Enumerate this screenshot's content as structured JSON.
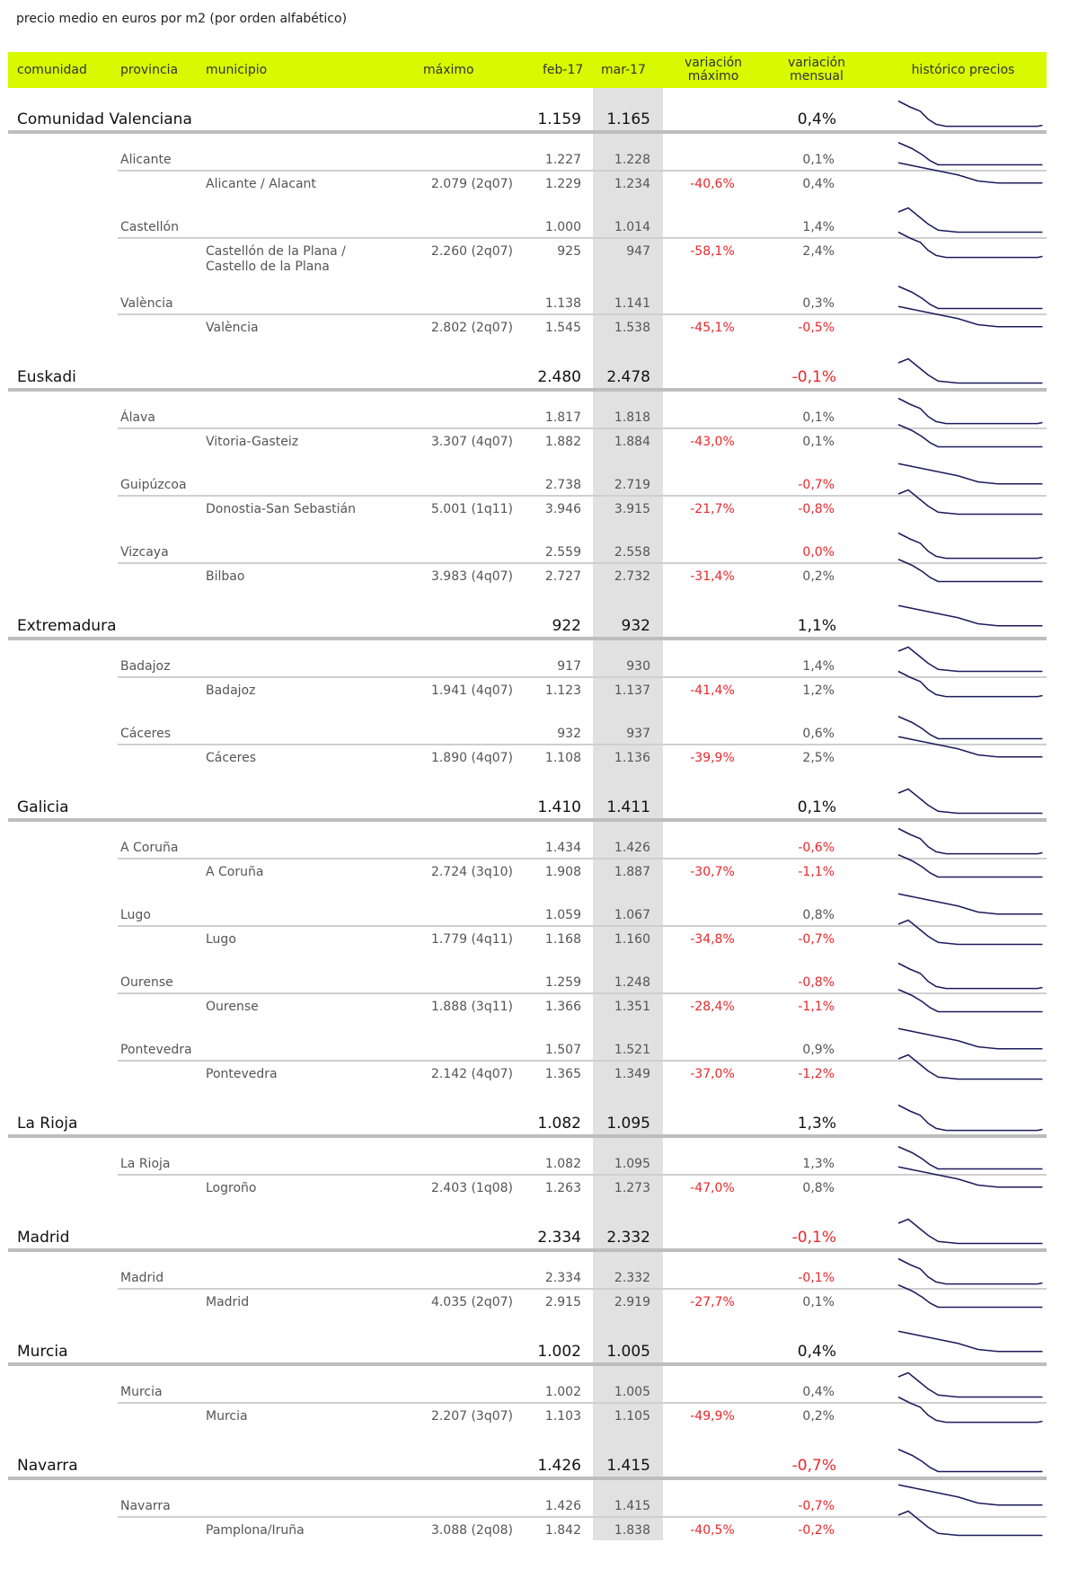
{
  "title": "precio medio en euros por m2 (por orden alfabético)",
  "header": {
    "comunidad": "comunidad",
    "provincia": "provincia",
    "municipio": "municipio",
    "maximo": "máximo",
    "feb": "feb-17",
    "mar": "mar-17",
    "var_max_1": "variación",
    "var_max_2": "máximo",
    "var_men_1": "variación",
    "var_men_2": "mensual",
    "historico": "histórico precios"
  },
  "colors": {
    "header_bg": "#d7fa00",
    "negative": "#e8282b",
    "highlight_column": "#e1e1e1",
    "sparkline": "#1c1c5c"
  },
  "rows": [
    {
      "level": "comunidad",
      "name": "Comunidad Valenciana",
      "maximo": "",
      "feb": "1.159",
      "mar": "1.165",
      "var_max": "",
      "var_men": "0,4%",
      "var_men_red": false
    },
    {
      "level": "provincia",
      "name": "Alicante",
      "maximo": "",
      "feb": "1.227",
      "mar": "1.228",
      "var_max": "",
      "var_men": "0,1%",
      "var_men_red": false
    },
    {
      "level": "municipio",
      "name": "Alicante / Alacant",
      "maximo": "2.079 (2q07)",
      "feb": "1.229",
      "mar": "1.234",
      "var_max": "-40,6%",
      "var_men": "0,4%",
      "var_men_red": false
    },
    {
      "level": "provincia",
      "name": "Castellón",
      "maximo": "",
      "feb": "1.000",
      "mar": "1.014",
      "var_max": "",
      "var_men": "1,4%",
      "var_men_red": false
    },
    {
      "level": "municipio",
      "name": "Castellón de la Plana /",
      "name2": "Castello de la Plana",
      "maximo": "2.260 (2q07)",
      "feb": "925",
      "mar": "947",
      "var_max": "-58,1%",
      "var_men": "2,4%",
      "var_men_red": false
    },
    {
      "level": "provincia",
      "name": "València",
      "maximo": "",
      "feb": "1.138",
      "mar": "1.141",
      "var_max": "",
      "var_men": "0,3%",
      "var_men_red": false
    },
    {
      "level": "municipio",
      "name": "València",
      "maximo": "2.802 (2q07)",
      "feb": "1.545",
      "mar": "1.538",
      "var_max": "-45,1%",
      "var_men": "-0,5%",
      "var_men_red": true
    },
    {
      "level": "comunidad",
      "name": "Euskadi",
      "maximo": "",
      "feb": "2.480",
      "mar": "2.478",
      "var_max": "",
      "var_men": "-0,1%",
      "var_men_red": true
    },
    {
      "level": "provincia",
      "name": "Álava",
      "maximo": "",
      "feb": "1.817",
      "mar": "1.818",
      "var_max": "",
      "var_men": "0,1%",
      "var_men_red": false
    },
    {
      "level": "municipio",
      "name": "Vitoria-Gasteiz",
      "maximo": "3.307 (4q07)",
      "feb": "1.882",
      "mar": "1.884",
      "var_max": "-43,0%",
      "var_men": "0,1%",
      "var_men_red": false
    },
    {
      "level": "provincia",
      "name": "Guipúzcoa",
      "maximo": "",
      "feb": "2.738",
      "mar": "2.719",
      "var_max": "",
      "var_men": "-0,7%",
      "var_men_red": true
    },
    {
      "level": "municipio",
      "name": "Donostia-San Sebastián",
      "maximo": "5.001 (1q11)",
      "feb": "3.946",
      "mar": "3.915",
      "var_max": "-21,7%",
      "var_men": "-0,8%",
      "var_men_red": true
    },
    {
      "level": "provincia",
      "name": "Vizcaya",
      "maximo": "",
      "feb": "2.559",
      "mar": "2.558",
      "var_max": "",
      "var_men": "0,0%",
      "var_men_red": true
    },
    {
      "level": "municipio",
      "name": "Bilbao",
      "maximo": "3.983 (4q07)",
      "feb": "2.727",
      "mar": "2.732",
      "var_max": "-31,4%",
      "var_men": "0,2%",
      "var_men_red": false
    },
    {
      "level": "comunidad",
      "name": "Extremadura",
      "maximo": "",
      "feb": "922",
      "mar": "932",
      "var_max": "",
      "var_men": "1,1%",
      "var_men_red": false
    },
    {
      "level": "provincia",
      "name": "Badajoz",
      "maximo": "",
      "feb": "917",
      "mar": "930",
      "var_max": "",
      "var_men": "1,4%",
      "var_men_red": false
    },
    {
      "level": "municipio",
      "name": "Badajoz",
      "maximo": "1.941 (4q07)",
      "feb": "1.123",
      "mar": "1.137",
      "var_max": "-41,4%",
      "var_men": "1,2%",
      "var_men_red": false
    },
    {
      "level": "provincia",
      "name": "Cáceres",
      "maximo": "",
      "feb": "932",
      "mar": "937",
      "var_max": "",
      "var_men": "0,6%",
      "var_men_red": false
    },
    {
      "level": "municipio",
      "name": "Cáceres",
      "maximo": "1.890 (4q07)",
      "feb": "1.108",
      "mar": "1.136",
      "var_max": "-39,9%",
      "var_men": "2,5%",
      "var_men_red": false
    },
    {
      "level": "comunidad",
      "name": "Galicia",
      "maximo": "",
      "feb": "1.410",
      "mar": "1.411",
      "var_max": "",
      "var_men": "0,1%",
      "var_men_red": false
    },
    {
      "level": "provincia",
      "name": "A Coruña",
      "maximo": "",
      "feb": "1.434",
      "mar": "1.426",
      "var_max": "",
      "var_men": "-0,6%",
      "var_men_red": true
    },
    {
      "level": "municipio",
      "name": "A Coruña",
      "maximo": "2.724 (3q10)",
      "feb": "1.908",
      "mar": "1.887",
      "var_max": "-30,7%",
      "var_men": "-1,1%",
      "var_men_red": true
    },
    {
      "level": "provincia",
      "name": "Lugo",
      "maximo": "",
      "feb": "1.059",
      "mar": "1.067",
      "var_max": "",
      "var_men": "0,8%",
      "var_men_red": false
    },
    {
      "level": "municipio",
      "name": "Lugo",
      "maximo": "1.779 (4q11)",
      "feb": "1.168",
      "mar": "1.160",
      "var_max": "-34,8%",
      "var_men": "-0,7%",
      "var_men_red": true
    },
    {
      "level": "provincia",
      "name": "Ourense",
      "maximo": "",
      "feb": "1.259",
      "mar": "1.248",
      "var_max": "",
      "var_men": "-0,8%",
      "var_men_red": true
    },
    {
      "level": "municipio",
      "name": "Ourense",
      "maximo": "1.888 (3q11)",
      "feb": "1.366",
      "mar": "1.351",
      "var_max": "-28,4%",
      "var_men": "-1,1%",
      "var_men_red": true
    },
    {
      "level": "provincia",
      "name": "Pontevedra",
      "maximo": "",
      "feb": "1.507",
      "mar": "1.521",
      "var_max": "",
      "var_men": "0,9%",
      "var_men_red": false
    },
    {
      "level": "municipio",
      "name": "Pontevedra",
      "maximo": "2.142 (4q07)",
      "feb": "1.365",
      "mar": "1.349",
      "var_max": "-37,0%",
      "var_men": "-1,2%",
      "var_men_red": true
    },
    {
      "level": "comunidad",
      "name": "La Rioja",
      "maximo": "",
      "feb": "1.082",
      "mar": "1.095",
      "var_max": "",
      "var_men": "1,3%",
      "var_men_red": false
    },
    {
      "level": "provincia",
      "name": "La Rioja",
      "maximo": "",
      "feb": "1.082",
      "mar": "1.095",
      "var_max": "",
      "var_men": "1,3%",
      "var_men_red": false
    },
    {
      "level": "municipio",
      "name": "Logroño",
      "maximo": "2.403 (1q08)",
      "feb": "1.263",
      "mar": "1.273",
      "var_max": "-47,0%",
      "var_men": "0,8%",
      "var_men_red": false
    },
    {
      "level": "comunidad",
      "name": "Madrid",
      "maximo": "",
      "feb": "2.334",
      "mar": "2.332",
      "var_max": "",
      "var_men": "-0,1%",
      "var_men_red": true
    },
    {
      "level": "provincia",
      "name": "Madrid",
      "maximo": "",
      "feb": "2.334",
      "mar": "2.332",
      "var_max": "",
      "var_men": "-0,1%",
      "var_men_red": true
    },
    {
      "level": "municipio",
      "name": "Madrid",
      "maximo": "4.035 (2q07)",
      "feb": "2.915",
      "mar": "2.919",
      "var_max": "-27,7%",
      "var_men": "0,1%",
      "var_men_red": false
    },
    {
      "level": "comunidad",
      "name": "Murcia",
      "maximo": "",
      "feb": "1.002",
      "mar": "1.005",
      "var_max": "",
      "var_men": "0,4%",
      "var_men_red": false
    },
    {
      "level": "provincia",
      "name": "Murcia",
      "maximo": "",
      "feb": "1.002",
      "mar": "1.005",
      "var_max": "",
      "var_men": "0,4%",
      "var_men_red": false
    },
    {
      "level": "municipio",
      "name": "Murcia",
      "maximo": "2.207 (3q07)",
      "feb": "1.103",
      "mar": "1.105",
      "var_max": "-49,9%",
      "var_men": "0,2%",
      "var_men_red": false
    },
    {
      "level": "comunidad",
      "name": "Navarra",
      "maximo": "",
      "feb": "1.426",
      "mar": "1.415",
      "var_max": "",
      "var_men": "-0,7%",
      "var_men_red": true
    },
    {
      "level": "provincia",
      "name": "Navarra",
      "maximo": "",
      "feb": "1.426",
      "mar": "1.415",
      "var_max": "",
      "var_men": "-0,7%",
      "var_men_red": true
    },
    {
      "level": "municipio",
      "name": "Pamplona/Iruña",
      "maximo": "3.088 (2q08)",
      "feb": "1.842",
      "mar": "1.838",
      "var_max": "-40,5%",
      "var_men": "-0,2%",
      "var_men_red": true
    }
  ]
}
